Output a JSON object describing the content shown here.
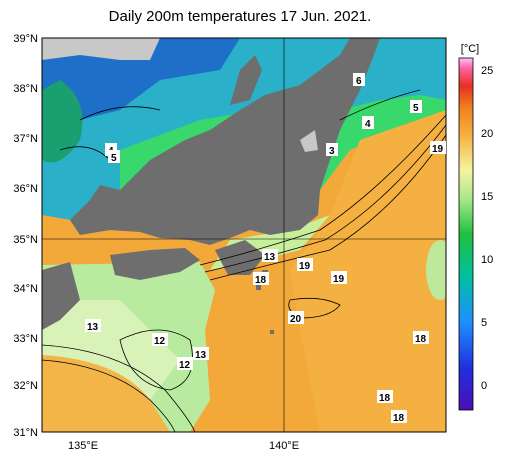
{
  "title": "Daily 200m temperatures 17 Jun. 2021.",
  "lat_labels": [
    "39°N",
    "38°N",
    "37°N",
    "36°N",
    "35°N",
    "34°N",
    "33°N",
    "32°N",
    "31°N"
  ],
  "lon_labels": [
    "135°E",
    "140°E"
  ],
  "colorbar": {
    "unit": "[°C]",
    "ticks": [
      "25",
      "20",
      "15",
      "10",
      "5",
      "0"
    ],
    "range": [
      -2,
      26
    ]
  },
  "contour_labels": [
    "6",
    "5",
    "4",
    "4",
    "5",
    "3",
    "19",
    "13",
    "19",
    "19",
    "18",
    "20",
    "13",
    "12",
    "12",
    "13",
    "18",
    "18",
    "18"
  ],
  "colors": {
    "land": "#6e6e6e",
    "warm": "#f0a52b",
    "cool": "#a9e88a",
    "cold": "#2aa0d8"
  }
}
